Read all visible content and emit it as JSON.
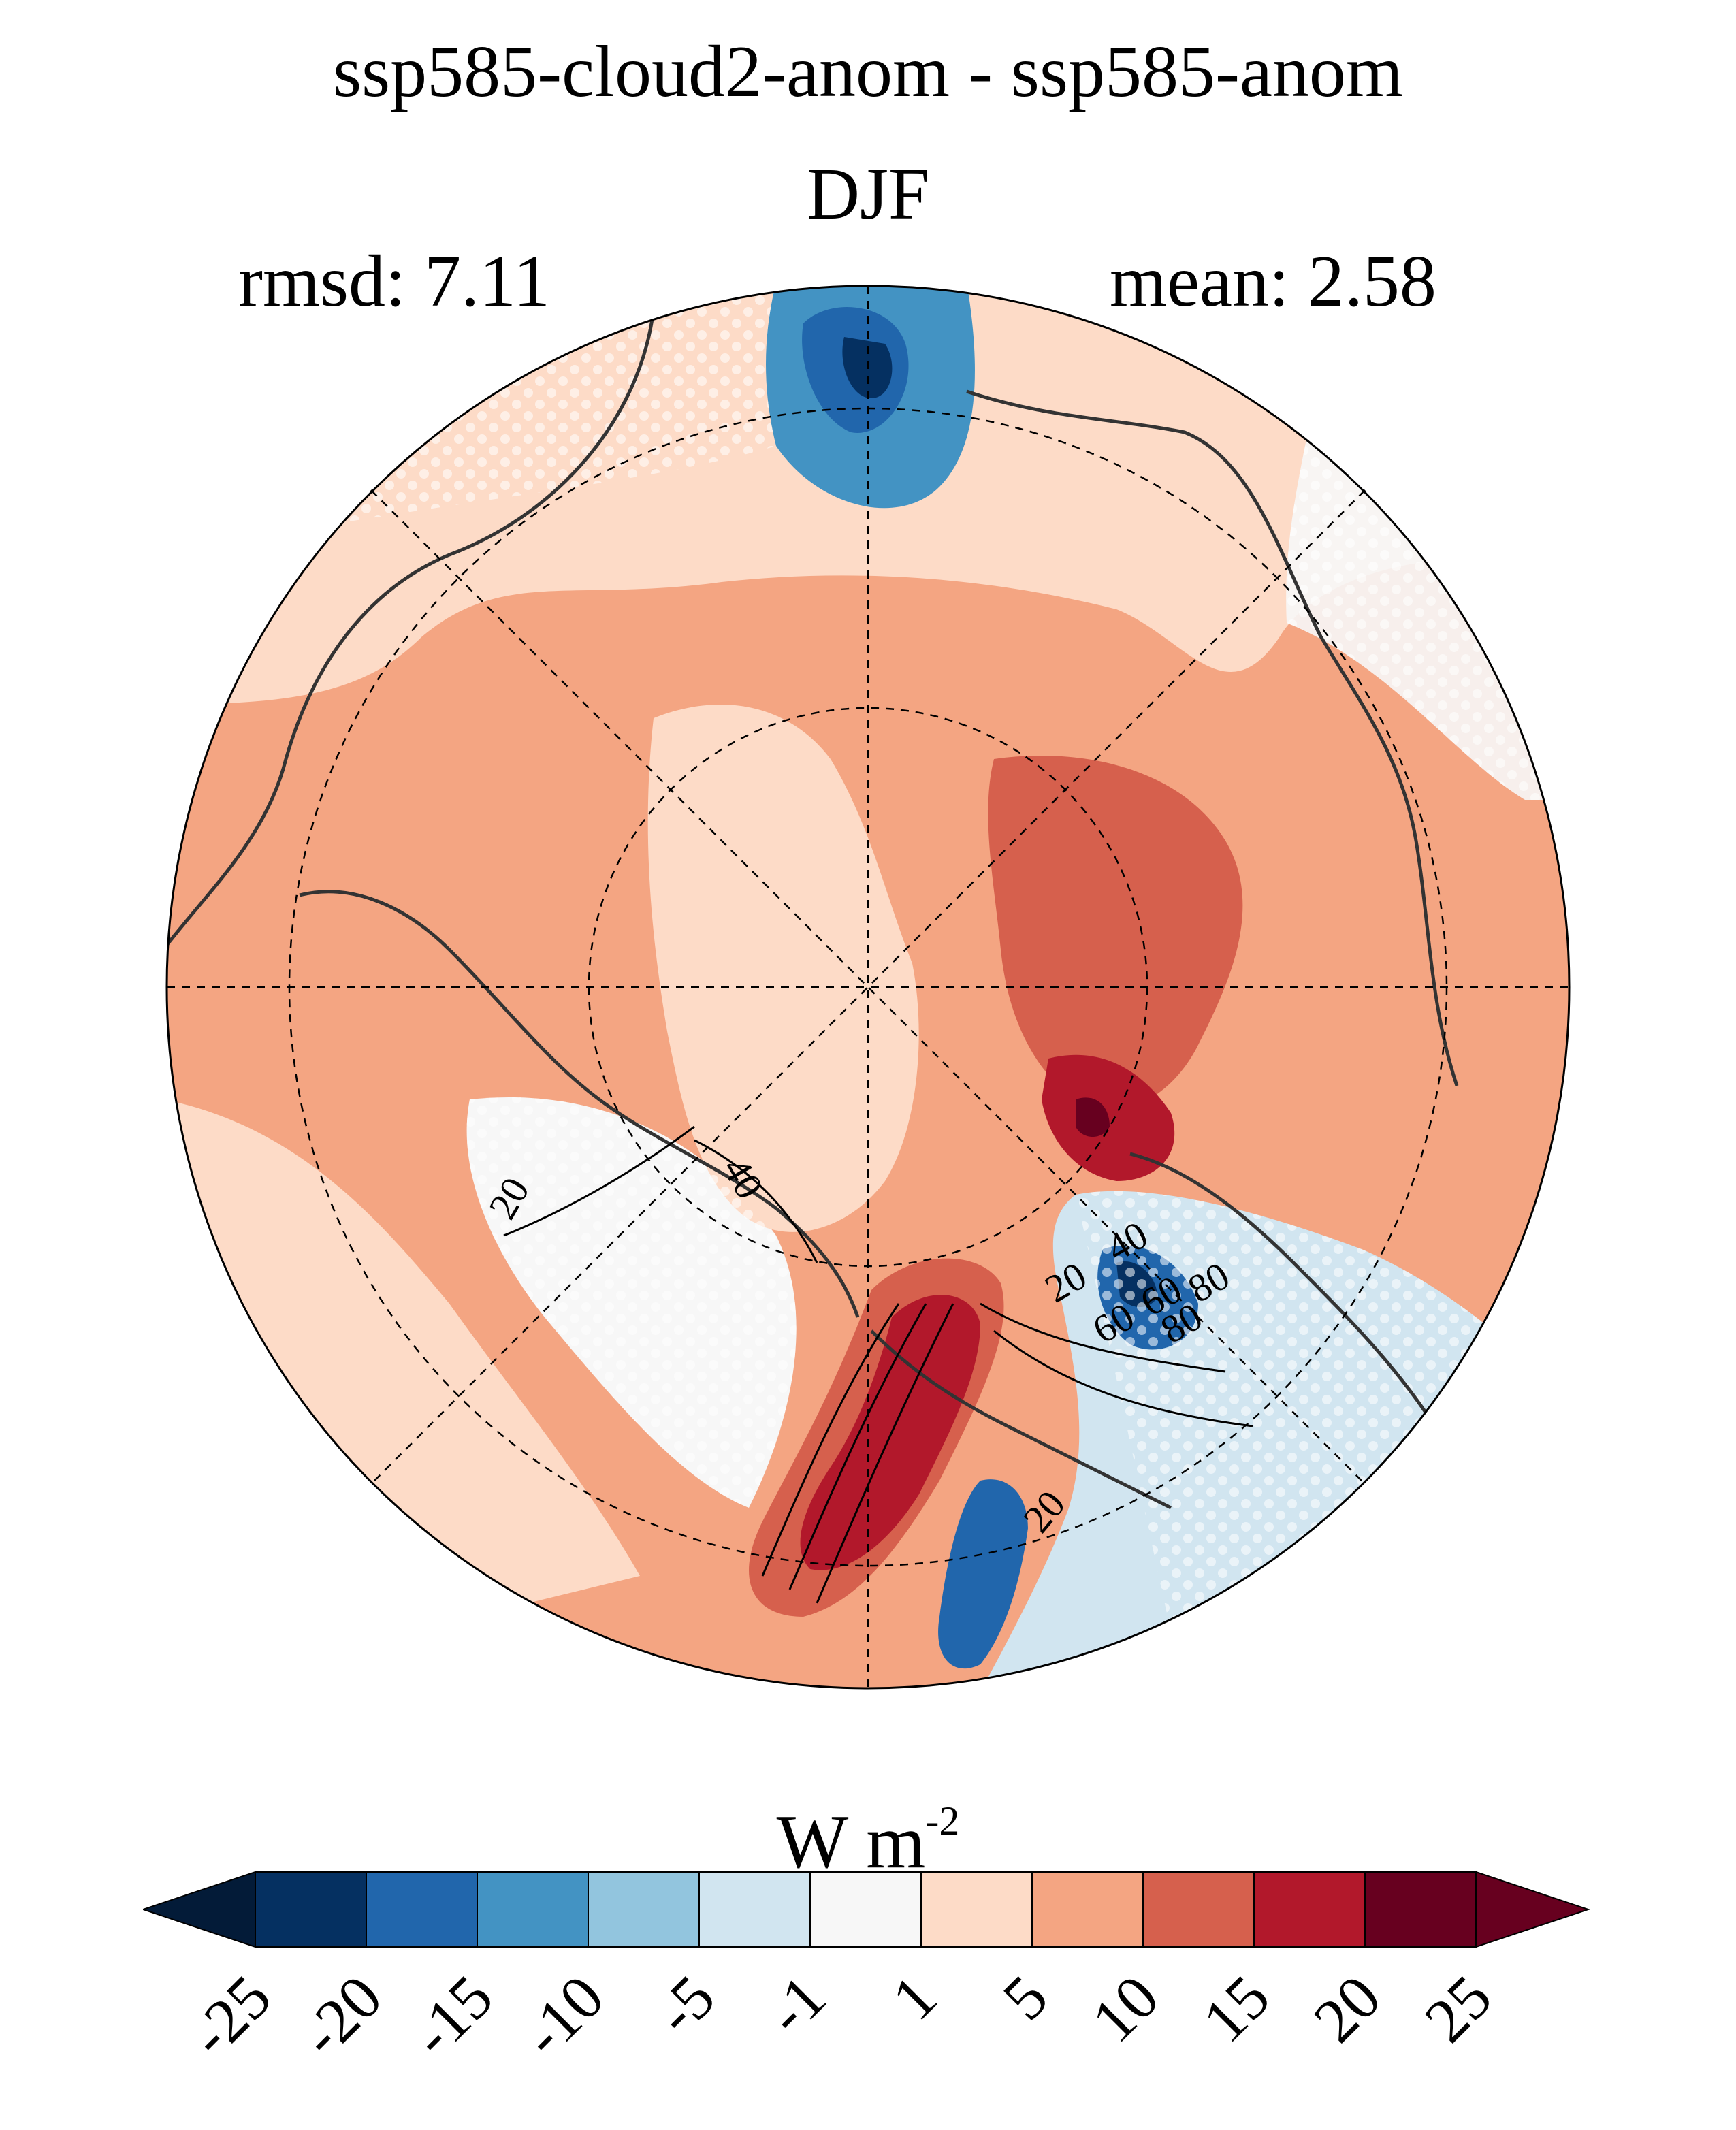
{
  "title": "ssp585-cloud2-anom - ssp585-anom",
  "season": "DJF",
  "rmsd_label": "rmsd: 7.11",
  "mean_label": "mean: 2.58",
  "units": {
    "base": "W m",
    "exponent": "-2"
  },
  "map": {
    "projection": "north-polar-stereographic",
    "graticule": "dashed",
    "contour_labels": [
      "20",
      "40",
      "20",
      "40",
      "60",
      "80",
      "60",
      "80",
      "20"
    ],
    "stippling": "white dots"
  },
  "colorbar": {
    "levels": [
      "-25",
      "-20",
      "-15",
      "-10",
      "-5",
      "-1",
      "1",
      "5",
      "10",
      "15",
      "20",
      "25"
    ],
    "colors": [
      "#053061",
      "#2166ac",
      "#4393c3",
      "#92c5de",
      "#d1e5f0",
      "#f7f7f7",
      "#fddbc7",
      "#f4a582",
      "#d6604d",
      "#b2182b",
      "#67001f"
    ],
    "under_color": "#031b38",
    "over_color": "#67001f"
  }
}
